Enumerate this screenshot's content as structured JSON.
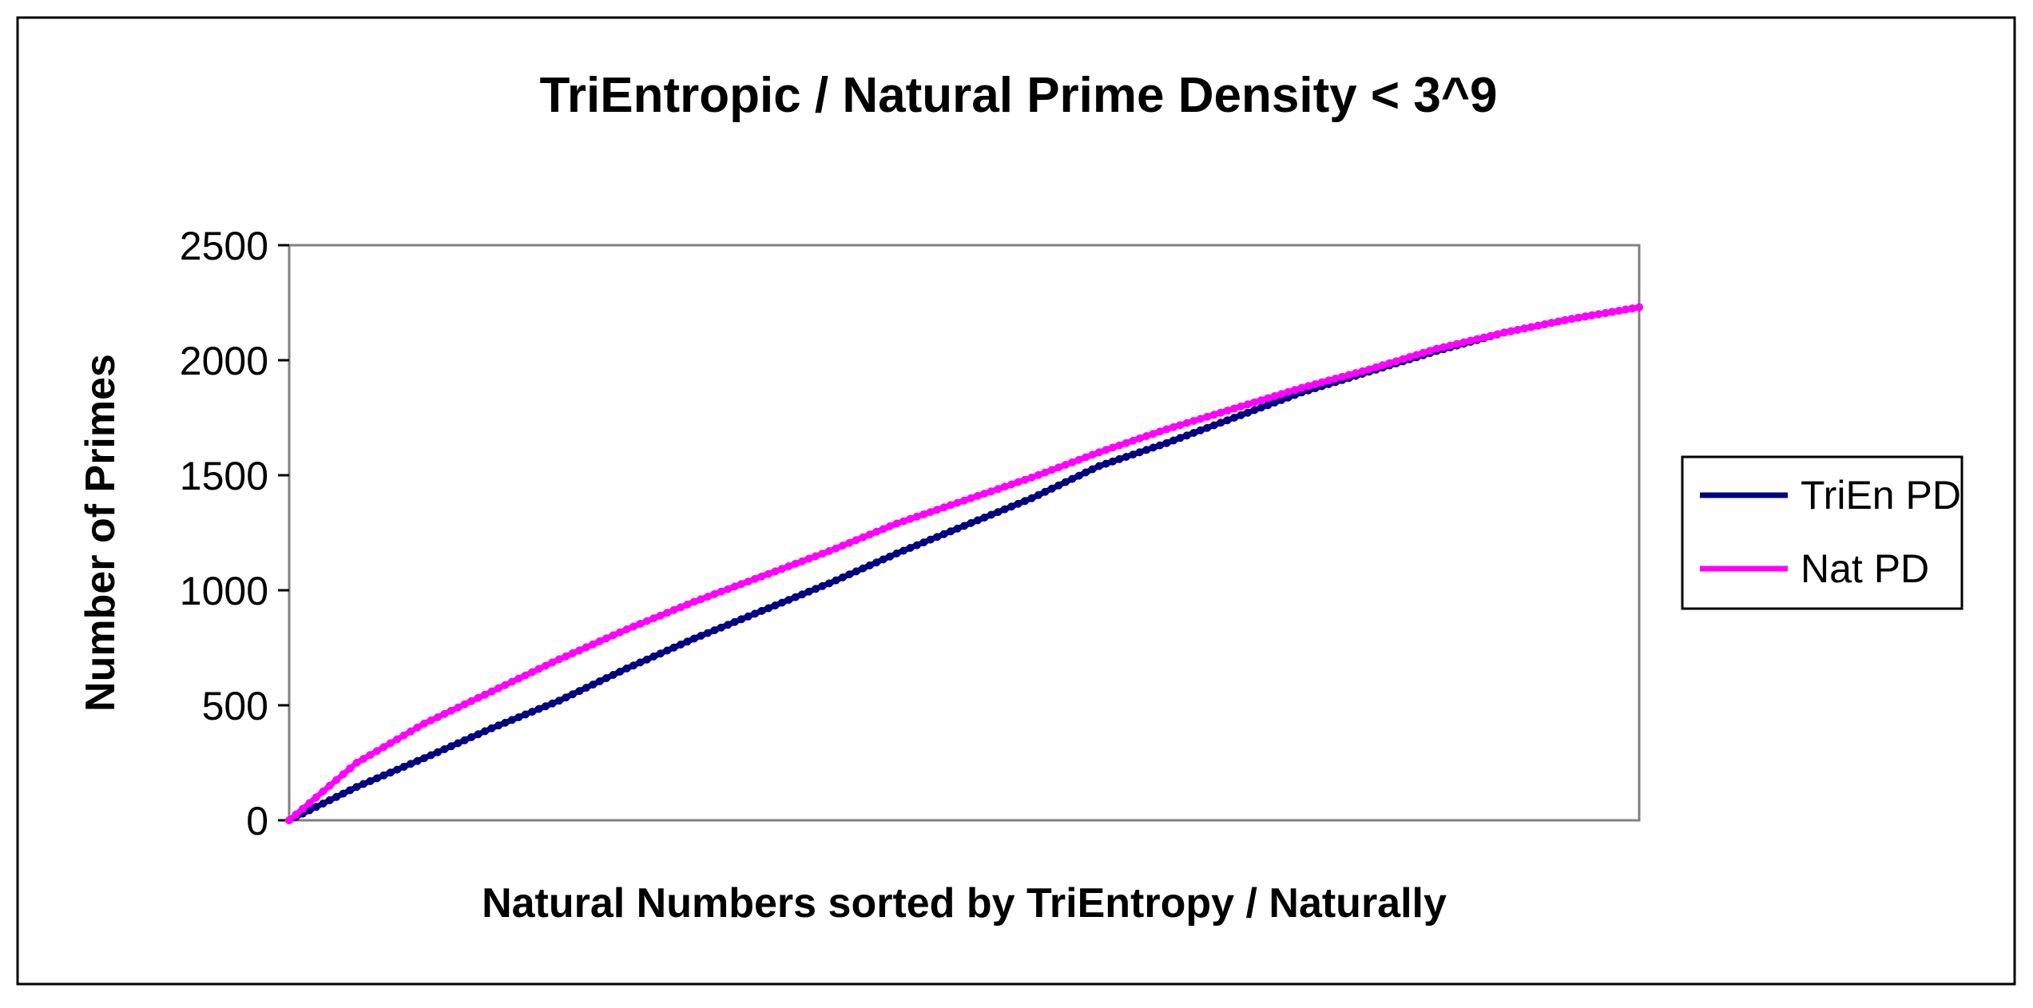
{
  "chart_data": {
    "type": "line",
    "title": "TriEntropic / Natural Prime Density < 3^9",
    "xlabel": "Natural Numbers sorted by TriEntropy / Naturally",
    "ylabel": "Number of Primes",
    "ylim": [
      0,
      2500
    ],
    "yticks": [
      "0",
      "500",
      "1000",
      "1500",
      "2000",
      "2500"
    ],
    "xlim": [
      0,
      1
    ],
    "grid": false,
    "legend_position": "right",
    "series": [
      {
        "name": "TriEn PD",
        "color": "#000080",
        "x": [
          0,
          0.05,
          0.1,
          0.15,
          0.2,
          0.25,
          0.3,
          0.35,
          0.4,
          0.45,
          0.5,
          0.55,
          0.6,
          0.65,
          0.7,
          0.75,
          0.8,
          0.85,
          0.9,
          0.95,
          1.0
        ],
        "values": [
          0,
          145,
          270,
          400,
          520,
          660,
          790,
          910,
          1030,
          1160,
          1280,
          1400,
          1540,
          1640,
          1750,
          1860,
          1950,
          2040,
          2120,
          2180,
          2230
        ]
      },
      {
        "name": "Nat PD",
        "color": "#ff00ff",
        "x": [
          0,
          0.05,
          0.1,
          0.15,
          0.2,
          0.25,
          0.3,
          0.35,
          0.4,
          0.45,
          0.5,
          0.55,
          0.6,
          0.65,
          0.7,
          0.75,
          0.8,
          0.85,
          0.9,
          0.95,
          1.0
        ],
        "values": [
          0,
          250,
          420,
          560,
          700,
          830,
          950,
          1060,
          1170,
          1290,
          1390,
          1490,
          1600,
          1700,
          1790,
          1880,
          1960,
          2050,
          2120,
          2180,
          2230
        ]
      }
    ]
  }
}
